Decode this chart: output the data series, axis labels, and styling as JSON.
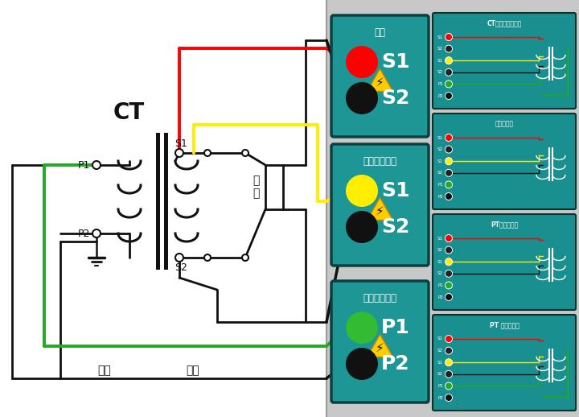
{
  "bg_color": "#ffffff",
  "teal": "#1e9696",
  "teal_mini": "#1a8f8f",
  "gray_bg": "#c8c8c8",
  "fig_width": 7.2,
  "fig_height": 5.18,
  "panel1_title": "输出",
  "panel2_title": "输出电压测量",
  "panel3_title": "感应电压测量",
  "diag1_title": "CT励磁变比接线图",
  "diag2_title": "负荷接线图",
  "diag3_title": "PT励磁接线图",
  "diag4_title": "PT 变比接线图",
  "ct_label": "CT",
  "primary_label": "一次",
  "secondary_label": "二次",
  "load_label": "负\n载",
  "p1_label": "P1",
  "p2_label": "P2",
  "s1_label": "S1",
  "s2_label": "S2",
  "red": "#ff0000",
  "yellow": "#ffee00",
  "green": "#22aa22",
  "black": "#111111",
  "white": "#ffffff",
  "dark": "#000000"
}
